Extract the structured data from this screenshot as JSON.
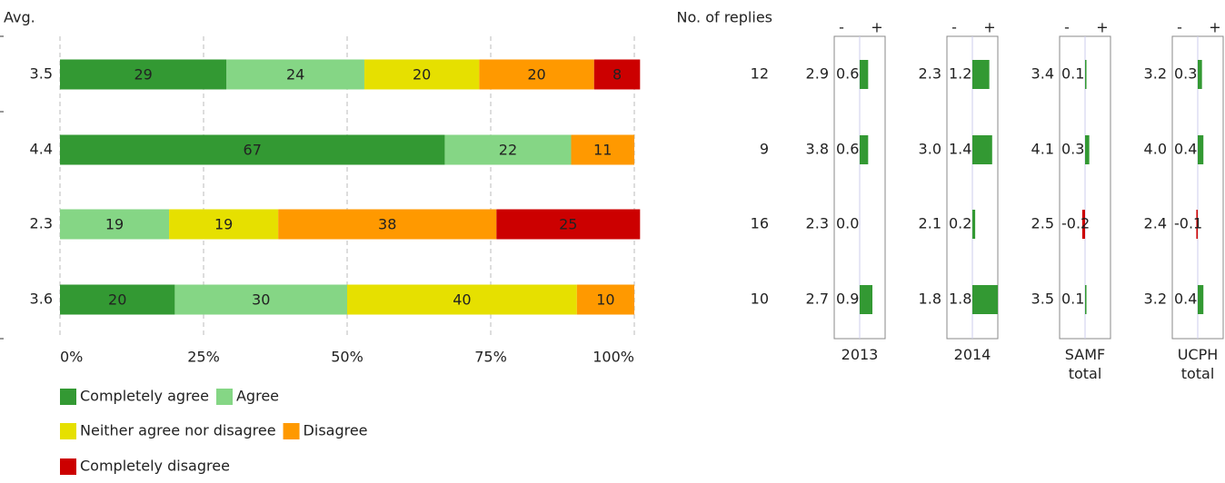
{
  "chart_data": [
    {
      "type": "stacked-barh",
      "title": "Avg.",
      "averages": [
        3.5,
        4.4,
        2.3,
        3.6
      ],
      "categories": [
        null,
        null,
        null,
        null
      ],
      "series": [
        {
          "name": "Completely agree",
          "color": "#339933",
          "values": [
            29,
            67,
            0,
            20
          ]
        },
        {
          "name": "Agree",
          "color": "#85d685",
          "values": [
            24,
            22,
            19,
            30
          ]
        },
        {
          "name": "Neither agree nor disagree",
          "color": "#e6e000",
          "values": [
            20,
            0,
            19,
            40
          ]
        },
        {
          "name": "Disagree",
          "color": "#ff9900",
          "values": [
            20,
            11,
            38,
            10
          ]
        },
        {
          "name": "Completely disagree",
          "color": "#cc0000",
          "values": [
            8,
            0,
            25,
            0
          ]
        }
      ],
      "xlim": [
        0,
        100
      ],
      "xticks": [
        {
          "value": 0,
          "label": "0%"
        },
        {
          "value": 25,
          "label": "25%"
        },
        {
          "value": 50,
          "label": "50%"
        },
        {
          "value": 75,
          "label": "75%"
        },
        {
          "value": 100,
          "label": "100%"
        }
      ],
      "grid": true
    },
    {
      "type": "diff-table",
      "header": "No. of replies",
      "replies": [
        12,
        9,
        16,
        10
      ],
      "neg_label": "-",
      "pos_label": "+",
      "positive_color": "#339933",
      "negative_color": "#cc0000",
      "xlim": [
        -1.8,
        1.8
      ],
      "groups": [
        {
          "name": "2013",
          "averages": [
            "2.9",
            "3.8",
            "2.3",
            "2.7"
          ],
          "values": [
            0.6,
            0.6,
            0.0,
            0.9
          ],
          "value_labels": [
            "0.6",
            "0.6",
            "0.0",
            "0.9"
          ]
        },
        {
          "name": "2014",
          "averages": [
            "2.3",
            "3.0",
            "2.1",
            "1.8"
          ],
          "values": [
            1.2,
            1.4,
            0.2,
            1.8
          ],
          "value_labels": [
            "1.2",
            "1.4",
            "0.2",
            "1.8"
          ]
        },
        {
          "name": "SAMF total",
          "averages": [
            "3.4",
            "4.1",
            "2.5",
            "3.5"
          ],
          "values": [
            0.1,
            0.3,
            -0.2,
            0.1
          ],
          "value_labels": [
            "0.1",
            "0.3",
            "-0.2",
            "0.1"
          ]
        },
        {
          "name": "UCPH total",
          "averages": [
            "3.2",
            "4.0",
            "2.4",
            "3.2"
          ],
          "values": [
            0.3,
            0.4,
            -0.1,
            0.4
          ],
          "value_labels": [
            "0.3",
            "0.4",
            "-0.1",
            "0.4"
          ]
        }
      ]
    }
  ]
}
